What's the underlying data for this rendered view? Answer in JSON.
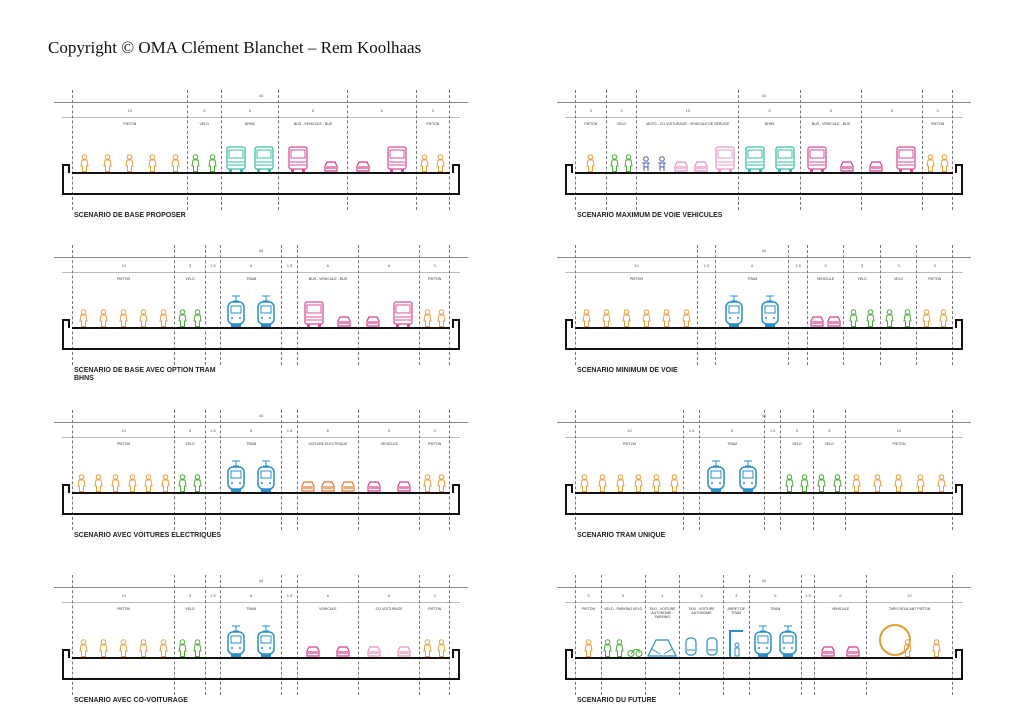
{
  "copyright": "Copyright ©  OMA  Clément Blanchet – Rem Koolhaas",
  "colors": {
    "person": "#e8a040",
    "cyclist": "#4caa3c",
    "bhns": "#3cbfa8",
    "bus": "#d8509c",
    "lightbus": "#e89cc8",
    "tram": "#2a8fc8",
    "car": "#d83c8c",
    "lightcar": "#e890c0",
    "ecar": "#e07830",
    "moto": "#5058b0",
    "stop": "#2a8fc8",
    "walkway": "#e0a030"
  },
  "panels": [
    {
      "caption": "SCENARIO DE BASE PROPOSER",
      "total": "44",
      "lanes": [
        {
          "w": "10",
          "label": "PIETON",
          "icons": [
            "person",
            "person",
            "person",
            "person",
            "person"
          ]
        },
        {
          "w": "3",
          "label": "VELO",
          "icons": [
            "cyclist",
            "cyclist"
          ]
        },
        {
          "w": "5",
          "label": "BHNS",
          "icons": [
            "bhns",
            "bhns"
          ]
        },
        {
          "w": "6",
          "label": "BUS - VEHICULE - BUS",
          "icons": [
            "bus",
            "car"
          ]
        },
        {
          "w": "6",
          "label": "",
          "icons": [
            "car",
            "bus"
          ]
        },
        {
          "w": "3",
          "label": "PIETON",
          "icons": [
            "person",
            "person"
          ]
        }
      ]
    },
    {
      "caption": "SCENARIO MAXIMUM DE VOIE VEHICULES",
      "total": "44",
      "lanes": [
        {
          "w": "3",
          "label": "PIETON",
          "icons": [
            "person"
          ]
        },
        {
          "w": "3",
          "label": "VELO",
          "icons": [
            "cyclist",
            "cyclist"
          ]
        },
        {
          "w": "10",
          "label": "MOTO - CO-VOITURAGE - VEHICULE DE SERVICE",
          "icons": [
            "moto",
            "moto",
            "lightcar",
            "lightcar",
            "lightbus"
          ]
        },
        {
          "w": "6",
          "label": "BHNS",
          "icons": [
            "bhns",
            "bhns"
          ]
        },
        {
          "w": "6",
          "label": "BUS - VEHICULE - BUS",
          "icons": [
            "bus",
            "car"
          ]
        },
        {
          "w": "6",
          "label": "",
          "icons": [
            "car",
            "bus"
          ]
        },
        {
          "w": "3",
          "label": "PIETON",
          "icons": [
            "person",
            "person"
          ]
        }
      ]
    },
    {
      "caption": "SCENARIO DE BASE AVEC OPTION TRAM\nBHNS",
      "total": "44",
      "lanes": [
        {
          "w": "10",
          "label": "PIETON",
          "icons": [
            "person",
            "person",
            "person",
            "person",
            "person"
          ]
        },
        {
          "w": "3",
          "label": "VELO",
          "icons": [
            "cyclist",
            "cyclist"
          ]
        },
        {
          "w": "1.5",
          "label": "",
          "icons": []
        },
        {
          "w": "6",
          "label": "TRAM",
          "icons": [
            "tram",
            "tram"
          ]
        },
        {
          "w": "1.5",
          "label": "",
          "icons": []
        },
        {
          "w": "6",
          "label": "BUS - VEHICULE - BUS",
          "icons": [
            "bus",
            "car"
          ]
        },
        {
          "w": "6",
          "label": "",
          "icons": [
            "car",
            "bus"
          ]
        },
        {
          "w": "3",
          "label": "PIETON",
          "icons": [
            "person",
            "person"
          ]
        }
      ]
    },
    {
      "caption": "SCENARIO MINIMUM DE VOIE",
      "total": "44",
      "lanes": [
        {
          "w": "10",
          "label": "PIETON",
          "icons": [
            "person",
            "person",
            "person",
            "person",
            "person",
            "person"
          ]
        },
        {
          "w": "1.5",
          "label": "",
          "icons": []
        },
        {
          "w": "6",
          "label": "TRAM",
          "icons": [
            "tram",
            "tram"
          ]
        },
        {
          "w": "1.5",
          "label": "",
          "icons": []
        },
        {
          "w": "3",
          "label": "VEHICULE",
          "icons": [
            "car",
            "car"
          ]
        },
        {
          "w": "3",
          "label": "VELO",
          "icons": [
            "cyclist",
            "cyclist"
          ]
        },
        {
          "w": "3",
          "label": "VELO",
          "icons": [
            "cyclist",
            "cyclist"
          ]
        },
        {
          "w": "3",
          "label": "PIETON",
          "icons": [
            "person",
            "person"
          ]
        }
      ]
    },
    {
      "caption": "SCENARIO AVEC VOITURES ELECTRIQUES",
      "total": "44",
      "lanes": [
        {
          "w": "10",
          "label": "PIETON",
          "icons": [
            "person",
            "person",
            "person",
            "person",
            "person",
            "person"
          ]
        },
        {
          "w": "3",
          "label": "VELO",
          "icons": [
            "cyclist",
            "cyclist"
          ]
        },
        {
          "w": "1.5",
          "label": "",
          "icons": []
        },
        {
          "w": "6",
          "label": "TRAM",
          "icons": [
            "tram",
            "tram"
          ]
        },
        {
          "w": "1.5",
          "label": "",
          "icons": []
        },
        {
          "w": "6",
          "label": "VOITURE ELECTRIQUE",
          "icons": [
            "ecar",
            "ecar",
            "ecar"
          ]
        },
        {
          "w": "6",
          "label": "VEHICULE",
          "icons": [
            "car",
            "car"
          ]
        },
        {
          "w": "3",
          "label": "PIETON",
          "icons": [
            "person",
            "person"
          ]
        }
      ]
    },
    {
      "caption": "SCENARIO TRAM UNIQUE",
      "total": "44",
      "lanes": [
        {
          "w": "10",
          "label": "PIETON",
          "icons": [
            "person",
            "person",
            "person",
            "person",
            "person",
            "person"
          ]
        },
        {
          "w": "1.5",
          "label": "",
          "icons": []
        },
        {
          "w": "6",
          "label": "TRAM",
          "icons": [
            "tram",
            "tram"
          ]
        },
        {
          "w": "1.5",
          "label": "",
          "icons": []
        },
        {
          "w": "3",
          "label": "VELO",
          "icons": [
            "cyclist",
            "cyclist"
          ]
        },
        {
          "w": "3",
          "label": "VELO",
          "icons": [
            "cyclist",
            "cyclist"
          ]
        },
        {
          "w": "10",
          "label": "PIETON",
          "icons": [
            "person",
            "person",
            "person",
            "person",
            "person"
          ]
        }
      ]
    },
    {
      "caption": "SCENARIO AVEC CO-VOITURAGE",
      "total": "44",
      "lanes": [
        {
          "w": "10",
          "label": "PIETON",
          "icons": [
            "person",
            "person",
            "person",
            "person",
            "person"
          ]
        },
        {
          "w": "3",
          "label": "VELO",
          "icons": [
            "cyclist",
            "cyclist"
          ]
        },
        {
          "w": "1.5",
          "label": "",
          "icons": []
        },
        {
          "w": "6",
          "label": "TRAM",
          "icons": [
            "tram",
            "tram"
          ]
        },
        {
          "w": "1.5",
          "label": "",
          "icons": []
        },
        {
          "w": "6",
          "label": "VEHICULE",
          "icons": [
            "car",
            "car"
          ]
        },
        {
          "w": "6",
          "label": "CO-VOITURAGE",
          "icons": [
            "lightcar",
            "lightcar"
          ]
        },
        {
          "w": "3",
          "label": "PIETON",
          "icons": [
            "person",
            "person"
          ]
        }
      ]
    },
    {
      "caption": "SCENARIO DU FUTURE",
      "total": "44",
      "lanes": [
        {
          "w": "3",
          "label": "PIETON",
          "icons": [
            "person"
          ]
        },
        {
          "w": "5",
          "label": "VELO - PARKING VELO",
          "icons": [
            "cyclist",
            "cyclist",
            "bike"
          ]
        },
        {
          "w": "4",
          "label": "TAXI - VOITURE AUTONOME - PARKING",
          "icons": [
            "autocar"
          ]
        },
        {
          "w": "5",
          "label": "TAXI - VOITURE AUTONOME",
          "icons": [
            "pod",
            "pod"
          ]
        },
        {
          "w": "3",
          "label": "ARRET DE TRAM",
          "icons": [
            "stop"
          ]
        },
        {
          "w": "6",
          "label": "TRAM",
          "icons": [
            "tram",
            "tram"
          ]
        },
        {
          "w": "1.5",
          "label": "",
          "icons": []
        },
        {
          "w": "6",
          "label": "VEHICULE",
          "icons": [
            "car",
            "car"
          ]
        },
        {
          "w": "10",
          "label": "TAPIS ROULANT  PIETON",
          "icons": [
            "walkway",
            "person",
            "person"
          ]
        }
      ]
    }
  ]
}
